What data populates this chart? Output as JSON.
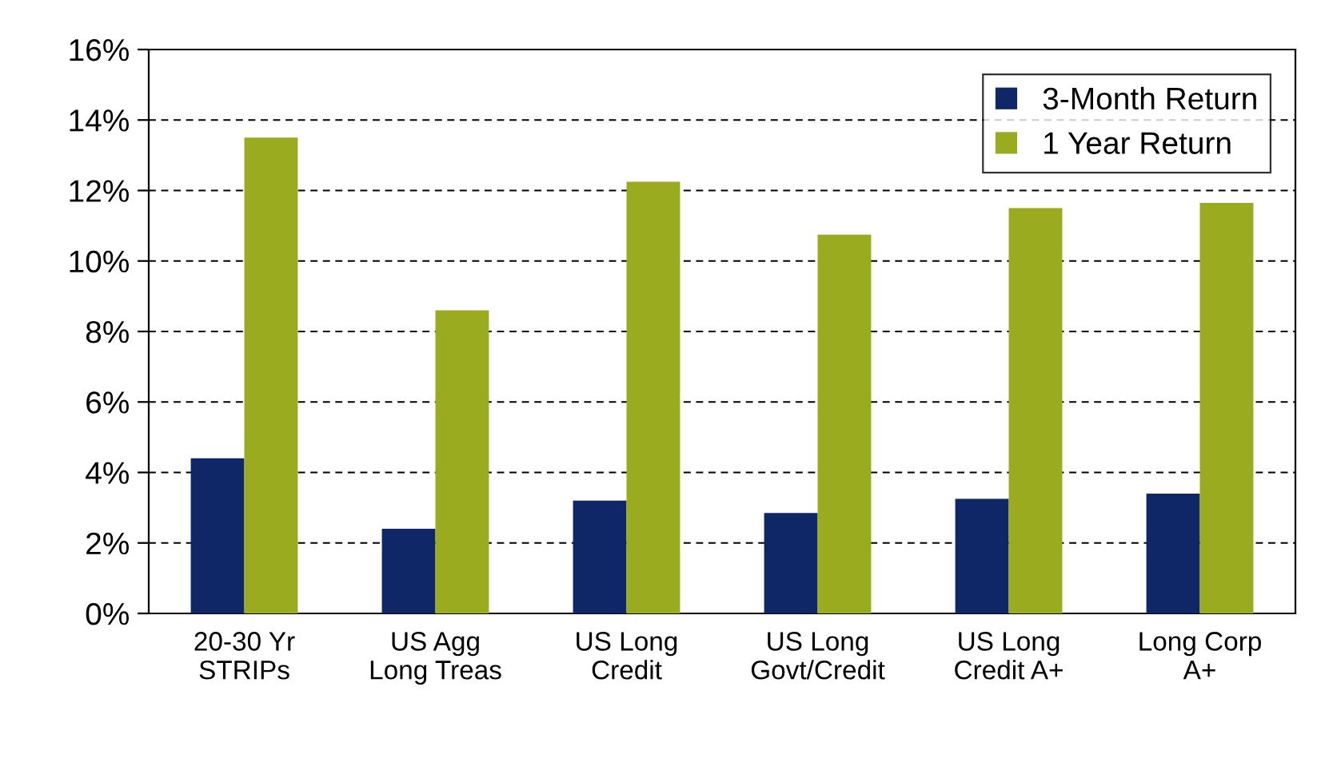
{
  "chart_data": {
    "type": "bar",
    "categories": [
      "20-30 Yr\nSTRIPs",
      "US Agg\nLong Treas",
      "US Long\nCredit",
      "US Long\nGovt/Credit",
      "US Long\nCredit A+",
      "Long Corp\nA+"
    ],
    "series": [
      {
        "name": "3-Month Return",
        "color": "#0f2766",
        "values": [
          4.4,
          2.4,
          3.2,
          2.85,
          3.25,
          3.4
        ]
      },
      {
        "name": "1 Year Return",
        "color": "#9bab20",
        "values": [
          13.5,
          8.6,
          12.25,
          10.75,
          11.5,
          11.65
        ]
      }
    ],
    "ylim": [
      0,
      16
    ],
    "yticks": [
      {
        "value": 0,
        "label": "0%"
      },
      {
        "value": 2,
        "label": "2%"
      },
      {
        "value": 4,
        "label": "4%"
      },
      {
        "value": 6,
        "label": "6%"
      },
      {
        "value": 8,
        "label": "8%"
      },
      {
        "value": 10,
        "label": "10%"
      },
      {
        "value": 12,
        "label": "12%"
      },
      {
        "value": 14,
        "label": "14%"
      },
      {
        "value": 16,
        "label": "16%"
      }
    ],
    "grid": "y",
    "legend": "top right"
  }
}
